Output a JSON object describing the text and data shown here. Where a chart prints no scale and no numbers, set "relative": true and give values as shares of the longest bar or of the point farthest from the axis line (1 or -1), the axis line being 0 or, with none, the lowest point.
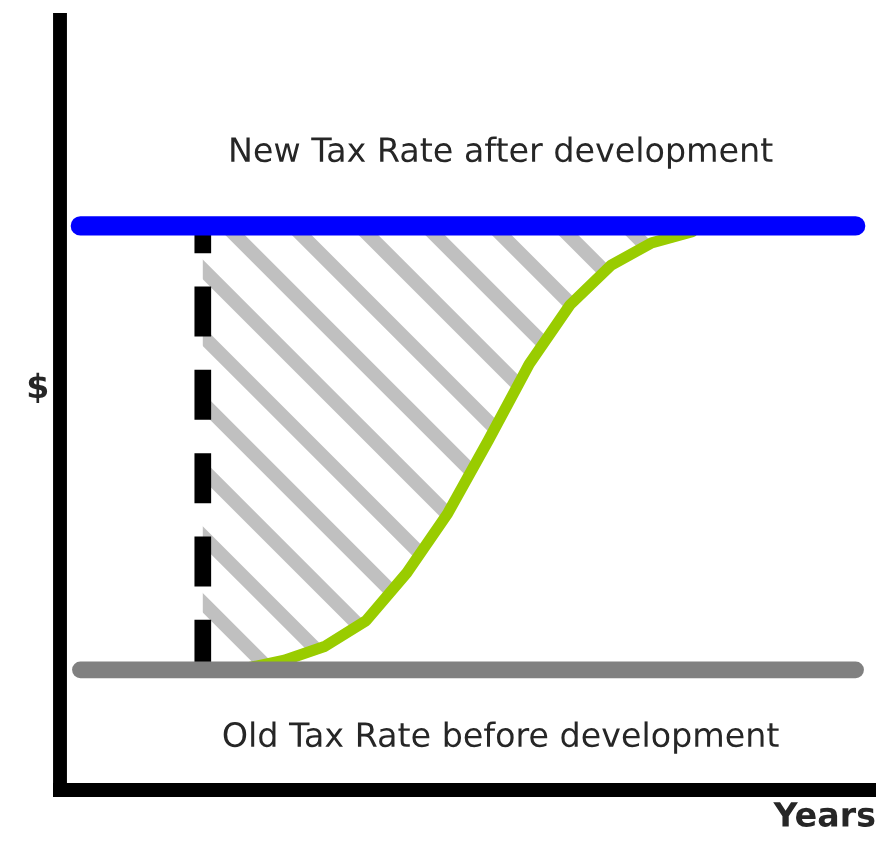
{
  "chart_data": {
    "type": "line",
    "relative": true,
    "ylabel": "$",
    "xlabel": "Years",
    "categories": [
      null,
      null,
      null,
      null,
      null,
      null,
      null,
      null,
      null,
      null,
      null,
      null,
      null,
      null,
      null,
      null,
      null,
      null,
      null,
      null
    ],
    "series": [
      {
        "color": "#0000ff",
        "values": [
          1,
          1,
          1,
          1,
          1,
          1,
          1,
          1,
          1,
          1,
          1,
          1,
          1,
          1,
          1,
          1,
          1,
          1,
          1,
          1
        ]
      },
      {
        "color": "#808080",
        "values": [
          0.213,
          0.213,
          0.213,
          0.213,
          0.213,
          0.213,
          0.213,
          0.213,
          0.213,
          0.213,
          0.213,
          0.213,
          0.213,
          0.213,
          0.213,
          0.213,
          0.213,
          0.213,
          0.213,
          0.213
        ]
      },
      {
        "color": "#99cc00",
        "values": [
          null,
          null,
          null,
          0.213,
          0.215,
          0.23,
          0.255,
          0.3,
          0.385,
          0.49,
          0.62,
          0.755,
          0.86,
          0.93,
          0.97,
          0.99,
          null,
          null,
          null,
          null
        ],
        "lower": [
          null,
          null,
          null,
          0.213,
          0.215,
          0.23,
          0.255,
          0.3,
          0.385,
          0.49,
          0.62,
          0.755,
          0.86,
          0.93,
          0.97,
          0.99,
          null,
          null,
          null,
          null
        ],
        "upper": [
          null,
          null,
          null,
          1,
          1,
          1,
          1,
          1,
          1,
          1,
          1,
          1,
          1,
          1,
          1,
          1,
          null,
          null,
          null,
          null
        ]
      }
    ],
    "annotations": [
      "New Tax Rate after development",
      "Old Tax Rate before development"
    ],
    "legend": false,
    "tick_labels": false
  }
}
